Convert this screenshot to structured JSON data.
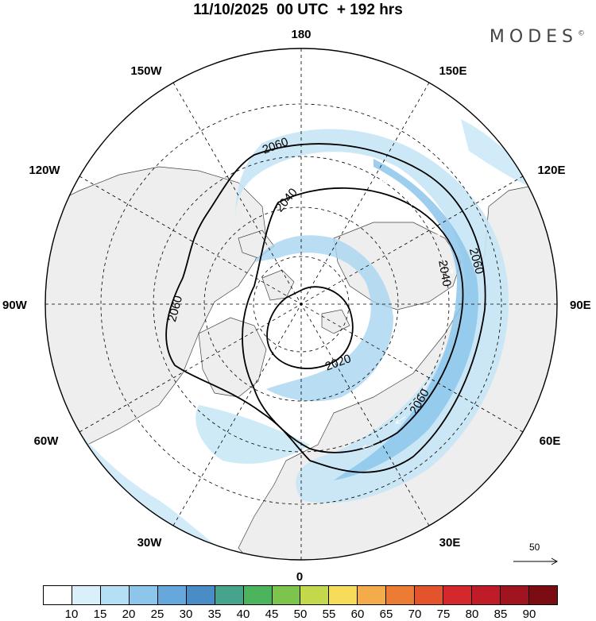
{
  "title": "11/10/2025  00 UTC  + 192 hrs",
  "brand": "MODES",
  "brand_mark": "©",
  "longitude_labels": {
    "top": "180",
    "bottom": "0",
    "left": "90W",
    "right": "90E",
    "upper_left": "150W",
    "upper_right": "150E",
    "upper_mid_left": "120W",
    "upper_mid_right": "120E",
    "lower_mid_left": "60W",
    "lower_mid_right": "60E",
    "lower_left": "30W",
    "lower_right": "30E"
  },
  "contour_labels": [
    "2020",
    "2040",
    "2060",
    "2060",
    "2040",
    "2060",
    "2060"
  ],
  "reference_vector_label": "50",
  "colorbar": {
    "ticks": [
      "10",
      "15",
      "20",
      "25",
      "30",
      "35",
      "40",
      "45",
      "50",
      "55",
      "60",
      "65",
      "70",
      "75",
      "80",
      "85",
      "90"
    ],
    "colors": [
      "#ffffff",
      "#d9f0fb",
      "#b4dff5",
      "#8cc6ea",
      "#66a8dc",
      "#4a8cc6",
      "#46a48c",
      "#4cb45c",
      "#7cc44c",
      "#c4d84c",
      "#f6dc5a",
      "#f4ac4a",
      "#ec7c34",
      "#e4542c",
      "#d4282c",
      "#c01c28",
      "#a01420",
      "#7c0c14"
    ]
  }
}
